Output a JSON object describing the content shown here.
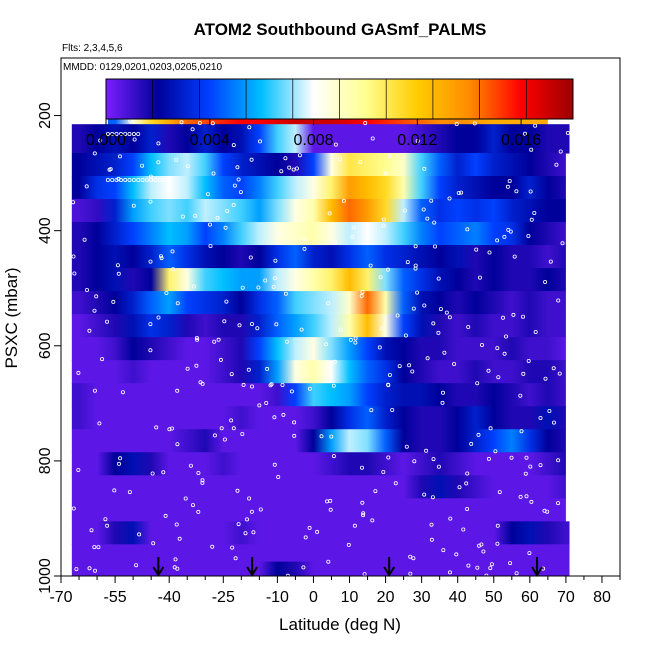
{
  "chart_data": {
    "type": "heatmap",
    "title": "ATOM2 Southbound GASmf_PALMS",
    "flights_note": "Flts: 2,3,4,5,6",
    "dates_note": "MMDD: 0129,0201,0203,0205,0210",
    "xlabel": "Latitude (deg N)",
    "ylabel": "PSXC (mbar)",
    "xlim": [
      -70,
      85
    ],
    "ylim": [
      1000,
      100
    ],
    "x_ticks": [
      -70,
      -55,
      -40,
      -25,
      -10,
      0,
      10,
      20,
      30,
      40,
      50,
      60,
      70,
      80
    ],
    "x_minor_ticks": [
      -65,
      -60,
      -50,
      -45,
      -35,
      -30,
      -20,
      -15,
      -5,
      5,
      15,
      25,
      35,
      45,
      55,
      65,
      75,
      85
    ],
    "y_ticks": [
      200,
      400,
      600,
      800,
      1000
    ],
    "colorbar": {
      "min": 0.0,
      "max": 0.018,
      "tick_values": [
        0.0,
        0.004,
        0.008,
        0.012,
        0.016
      ],
      "tick_labels": [
        "0.000",
        "0.004",
        "0.008",
        "0.012",
        "0.016"
      ],
      "stops": [
        "#7b1fff",
        "#00009a",
        "#0040ff",
        "#00bfff",
        "#ffffff",
        "#ffff90",
        "#ffcc00",
        "#ff8c00",
        "#ff0000",
        "#9b0000"
      ]
    },
    "lat_grid": [
      -65,
      -60,
      -55,
      -50,
      -45,
      -40,
      -35,
      -30,
      -25,
      -20,
      -15,
      -10,
      -5,
      0,
      5,
      10,
      15,
      20,
      25,
      30,
      35,
      40,
      45,
      50,
      55,
      60,
      65,
      70
    ],
    "rows": [
      {
        "p_top": 190,
        "p_bot": 215,
        "lat_min": -57,
        "lat_max": 65,
        "values": [
          null,
          null,
          0.0045,
          0.0085,
          0.0115,
          0.013,
          0.0145,
          0.015,
          0.0155,
          0.016,
          0.016,
          0.0165,
          0.017,
          0.017,
          0.017,
          0.0165,
          0.016,
          0.0155,
          0.015,
          0.0145,
          0.014,
          0.014,
          0.0135,
          0.013,
          0.013,
          0.013,
          0.013,
          null
        ]
      },
      {
        "p_top": 215,
        "p_bot": 265,
        "lat_min": -67,
        "lat_max": 71,
        "values": [
          0.0015,
          0.002,
          0.0025,
          0.002,
          0.003,
          0.0015,
          0.002,
          0.003,
          0.002,
          0.0025,
          0.004,
          0.0065,
          0.0075,
          0.0005,
          0.0005,
          0.0005,
          0.0005,
          0.0005,
          0.0005,
          0.001,
          0.0015,
          0.002,
          0.002,
          0.003,
          0.002,
          0.002,
          0.0015,
          0.0015
        ]
      },
      {
        "p_top": 265,
        "p_bot": 305,
        "lat_min": -67,
        "lat_max": 70,
        "values": [
          0.002,
          0.0025,
          0.003,
          0.004,
          0.006,
          0.007,
          0.0075,
          0.0065,
          0.004,
          0.003,
          0.0025,
          0.002,
          0.0015,
          0.004,
          0.0085,
          0.011,
          0.0105,
          0.01,
          0.009,
          0.0065,
          0.0045,
          0.003,
          0.004,
          0.003,
          0.0025,
          0.002,
          0.0015,
          0.001
        ]
      },
      {
        "p_top": 305,
        "p_bot": 345,
        "lat_min": -67,
        "lat_max": 70,
        "values": [
          0.002,
          0.0035,
          0.004,
          0.006,
          0.0075,
          0.008,
          0.0075,
          0.006,
          0.0045,
          0.004,
          0.005,
          0.0065,
          0.0075,
          0.0085,
          0.0105,
          0.0135,
          0.0125,
          0.0115,
          0.0095,
          0.0065,
          0.004,
          0.003,
          0.0025,
          0.002,
          0.002,
          0.003,
          0.002,
          0.0015
        ]
      },
      {
        "p_top": 345,
        "p_bot": 385,
        "lat_min": -67,
        "lat_max": 70,
        "values": [
          0.0008,
          0.0012,
          0.003,
          0.0055,
          0.0065,
          0.007,
          0.0065,
          0.0075,
          0.007,
          0.0065,
          0.0055,
          0.007,
          0.0085,
          0.0095,
          0.0125,
          0.0145,
          0.0135,
          0.0115,
          0.0075,
          0.0045,
          0.0035,
          0.004,
          0.0035,
          0.004,
          0.003,
          0.0025,
          0.002,
          0.002
        ]
      },
      {
        "p_top": 385,
        "p_bot": 425,
        "lat_min": -67,
        "lat_max": 70,
        "values": [
          0.0015,
          0.002,
          0.003,
          0.004,
          0.005,
          0.006,
          0.0055,
          0.004,
          0.005,
          0.0065,
          0.0075,
          0.0085,
          0.009,
          0.0095,
          0.0085,
          0.0075,
          0.008,
          0.0075,
          0.0065,
          0.005,
          0.004,
          0.0045,
          0.005,
          0.004,
          0.0035,
          0.002,
          0.0015,
          0.001
        ]
      },
      {
        "p_top": 425,
        "p_bot": 465,
        "lat_min": -67,
        "lat_max": 70,
        "values": [
          0.0015,
          0.002,
          0.0025,
          0.002,
          0.003,
          0.0045,
          0.0035,
          0.0025,
          0.002,
          0.0015,
          0.002,
          0.0035,
          0.0045,
          0.003,
          0.0025,
          0.0035,
          0.0045,
          0.0035,
          0.003,
          0.0025,
          0.002,
          0.0025,
          0.0015,
          0.002,
          0.0015,
          0.0015,
          0.001,
          0.0015
        ]
      },
      {
        "p_top": 465,
        "p_bot": 505,
        "lat_min": -67,
        "lat_max": 70,
        "values": [
          0.0015,
          0.002,
          0.0025,
          0.0015,
          0.002,
          0.0105,
          0.0085,
          0.0065,
          0.006,
          0.0055,
          0.0055,
          0.0075,
          0.0085,
          0.0095,
          0.0105,
          0.0125,
          0.0105,
          0.007,
          0.0045,
          0.0035,
          0.0025,
          0.002,
          0.0015,
          0.002,
          0.0015,
          0.0015,
          0.002,
          0.0015
        ]
      },
      {
        "p_top": 505,
        "p_bot": 545,
        "lat_min": -67,
        "lat_max": 70,
        "values": [
          0.001,
          0.0015,
          0.002,
          0.003,
          0.0045,
          0.0055,
          0.004,
          0.0035,
          0.003,
          0.002,
          0.0035,
          0.0045,
          0.0065,
          0.007,
          0.0075,
          0.009,
          0.0145,
          0.0095,
          0.0045,
          0.0025,
          0.002,
          0.0015,
          0.002,
          0.0015,
          0.001,
          0.0015,
          0.001,
          0.001
        ]
      },
      {
        "p_top": 545,
        "p_bot": 585,
        "lat_min": -67,
        "lat_max": 70,
        "values": [
          0.0005,
          0.001,
          0.0015,
          0.0025,
          0.0035,
          0.003,
          0.0015,
          0.001,
          0.0015,
          0.0015,
          0.003,
          0.0045,
          0.0055,
          0.0065,
          0.0075,
          0.0095,
          0.0125,
          0.0085,
          0.004,
          0.0025,
          0.0015,
          0.001,
          0.0015,
          0.001,
          0.001,
          0.0015,
          0.001,
          0.001
        ]
      },
      {
        "p_top": 585,
        "p_bot": 625,
        "lat_min": -67,
        "lat_max": 70,
        "values": [
          0.0005,
          0.0005,
          0.001,
          0.002,
          0.0015,
          0.001,
          0.0005,
          0.0005,
          0.001,
          0.0015,
          0.004,
          0.006,
          0.0075,
          0.0085,
          0.007,
          0.0055,
          0.004,
          0.0025,
          0.002,
          0.0015,
          0.0015,
          0.001,
          0.001,
          0.001,
          0.0015,
          0.001,
          0.001,
          0.0005
        ]
      },
      {
        "p_top": 625,
        "p_bot": 665,
        "lat_min": -67,
        "lat_max": 70,
        "values": [
          0.0005,
          0.0005,
          0.0005,
          0.001,
          0.0005,
          0.0005,
          0.0005,
          0.0005,
          0.001,
          0.0015,
          0.003,
          0.0055,
          0.0085,
          0.0095,
          0.008,
          0.006,
          0.0045,
          0.0035,
          0.002,
          0.0015,
          0.001,
          0.001,
          0.0015,
          0.001,
          0.001,
          0.0015,
          0.0015,
          0.001
        ]
      },
      {
        "p_top": 665,
        "p_bot": 705,
        "lat_min": -67,
        "lat_max": 70,
        "values": [
          0.001,
          0.0005,
          0.0005,
          0.0005,
          0.0005,
          0.0005,
          0.0005,
          0.0005,
          0.0005,
          0.0005,
          0.0005,
          0.001,
          0.004,
          0.0065,
          0.006,
          0.0055,
          0.004,
          0.003,
          0.0025,
          0.0025,
          0.002,
          0.0015,
          0.0015,
          0.002,
          0.0015,
          0.001,
          0.0015,
          0.001
        ]
      },
      {
        "p_top": 705,
        "p_bot": 745,
        "lat_min": -67,
        "lat_max": 70,
        "values": [
          0.001,
          0.0005,
          0.0005,
          0.0005,
          0.0005,
          0.0005,
          0.0005,
          0.0005,
          0.0005,
          0.001,
          0.0005,
          0.0005,
          0.0005,
          0.001,
          0.002,
          0.0035,
          0.0045,
          0.003,
          0.002,
          0.0015,
          0.0015,
          0.002,
          0.003,
          0.002,
          0.0015,
          0.0015,
          0.0025,
          0.0015
        ]
      },
      {
        "p_top": 745,
        "p_bot": 785,
        "lat_min": -67,
        "lat_max": 70,
        "values": [
          0.0005,
          0.0005,
          0.0005,
          0.0005,
          0.0005,
          0.0005,
          0.001,
          0.0015,
          0.0005,
          0.0005,
          0.0005,
          0.0005,
          0.0005,
          0.002,
          0.0055,
          0.0075,
          0.007,
          0.0045,
          0.002,
          0.0015,
          0.0015,
          0.002,
          0.003,
          0.004,
          0.005,
          0.0035,
          0.002,
          0.0015
        ]
      },
      {
        "p_top": 785,
        "p_bot": 825,
        "lat_min": -67,
        "lat_max": 70,
        "values": [
          0.0005,
          0.0005,
          0.002,
          0.0025,
          0.0015,
          0.0005,
          0.0005,
          0.0005,
          0.001,
          0.0005,
          0.0005,
          0.0005,
          0.0005,
          0.0005,
          0.001,
          0.0015,
          0.0015,
          0.001,
          0.0005,
          0.001,
          0.0015,
          0.001,
          0.0005,
          0.0005,
          0.0005,
          0.0005,
          0.001,
          0.0015
        ]
      },
      {
        "p_top": 825,
        "p_bot": 865,
        "lat_min": -67,
        "lat_max": 70,
        "values": [
          0.0005,
          0.0005,
          0.0005,
          0.0005,
          0.0005,
          0.0005,
          0.0005,
          0.0005,
          0.0005,
          0.0005,
          0.0005,
          0.0005,
          0.0005,
          0.0005,
          0.0005,
          0.0005,
          0.0005,
          0.0005,
          0.0005,
          0.0015,
          0.0025,
          0.0015,
          0.001,
          0.0005,
          0.0005,
          0.0005,
          0.0005,
          0.001
        ]
      },
      {
        "p_top": 865,
        "p_bot": 905,
        "lat_min": -67,
        "lat_max": 70,
        "values": [
          0.0005,
          0.0005,
          0.0005,
          0.0005,
          0.0005,
          0.0005,
          0.0005,
          0.0005,
          0.0005,
          0.0005,
          0.0005,
          0.0005,
          0.0005,
          0.0005,
          0.0005,
          0.0005,
          0.0005,
          0.0005,
          0.0005,
          0.0005,
          0.0005,
          0.0005,
          0.0005,
          0.0005,
          0.0005,
          0.0005,
          0.0005,
          0.0005
        ]
      },
      {
        "p_top": 905,
        "p_bot": 945,
        "lat_min": -67,
        "lat_max": 71,
        "values": [
          0.0005,
          0.0005,
          0.0015,
          0.0025,
          0.0005,
          0.0005,
          0.0005,
          0.0005,
          0.0005,
          0.001,
          0.0005,
          0.0005,
          0.0005,
          0.0005,
          0.0005,
          0.0005,
          0.0005,
          0.0005,
          0.0005,
          0.0005,
          0.0005,
          0.0005,
          0.0005,
          0.0005,
          0.002,
          0.0025,
          0.0015,
          0.001
        ]
      },
      {
        "p_top": 945,
        "p_bot": 975,
        "lat_min": -67,
        "lat_max": 71,
        "values": [
          0.0005,
          0.0005,
          0.0005,
          0.0005,
          0.0005,
          0.0005,
          0.0005,
          0.0005,
          0.0005,
          0.0005,
          0.0005,
          0.0005,
          0.0005,
          0.0005,
          0.0005,
          0.0005,
          0.0005,
          0.0005,
          0.0005,
          0.0005,
          0.0005,
          0.0005,
          0.0005,
          0.0005,
          0.0005,
          0.0005,
          0.0005,
          0.0005
        ]
      },
      {
        "p_top": 975,
        "p_bot": 1002,
        "lat_min": -67,
        "lat_max": 71,
        "values": [
          0.0005,
          0.0005,
          0.0005,
          0.0005,
          0.0005,
          0.0005,
          0.0005,
          0.0005,
          0.0005,
          0.0005,
          0.0005,
          0.002,
          0.0015,
          0.0005,
          0.0005,
          0.0005,
          0.0005,
          0.0005,
          0.0005,
          0.0005,
          0.0005,
          0.0005,
          0.0005,
          0.0005,
          0.0005,
          0.0005,
          0.0005,
          0.0005
        ]
      }
    ],
    "arrow_latitudes": [
      -43,
      -17,
      21,
      62
    ],
    "grid": false
  }
}
